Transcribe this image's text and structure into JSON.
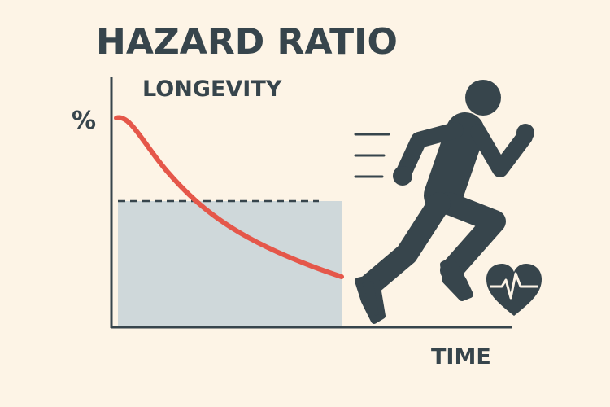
{
  "title": "HAZARD RATIO",
  "subtitle": "LONGEVITY",
  "y_axis_label": "%",
  "x_axis_label": "TIME"
}
